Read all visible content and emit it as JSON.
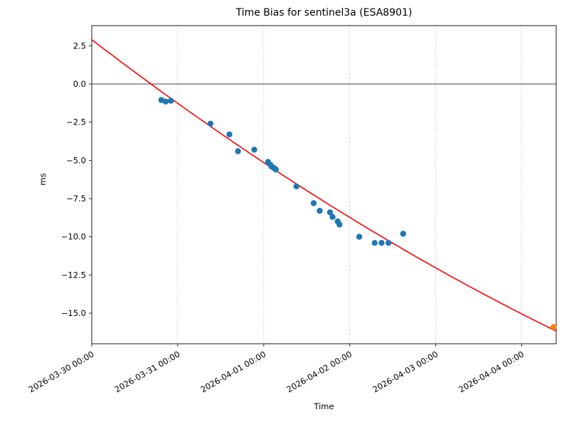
{
  "figure": {
    "title": "Time Bias for sentinel3a (ESA8901)",
    "xlabel": "Time",
    "ylabel": "ms"
  },
  "chart_data": {
    "type": "scatter",
    "title": "Time Bias for sentinel3a (ESA8901)",
    "xlabel": "Time",
    "ylabel": "ms",
    "x_unit": "days since 2026-03-30 00:00",
    "xlim_days": [
      0,
      5.4
    ],
    "ylim": [
      -17.0,
      3.82
    ],
    "grid": "vertical dotted gridlines at each day tick",
    "zero_line": true,
    "colors": {
      "grid": "#6a93c0",
      "axis": "#000000",
      "observations": "#1f77b4",
      "latest": "#ff7f0e",
      "fit": "#ff0000"
    },
    "x_ticks": [
      {
        "t": 0,
        "label": "2026-03-30 00:00"
      },
      {
        "t": 1,
        "label": "2026-03-31 00:00"
      },
      {
        "t": 2,
        "label": "2026-04-01 00:00"
      },
      {
        "t": 3,
        "label": "2026-04-02 00:00"
      },
      {
        "t": 4,
        "label": "2026-04-03 00:00"
      },
      {
        "t": 5,
        "label": "2026-04-04 00:00"
      }
    ],
    "y_ticks": [
      {
        "v": 2.5,
        "label": "2.5"
      },
      {
        "v": 0.0,
        "label": "0.0"
      },
      {
        "v": -2.5,
        "label": "−2.5"
      },
      {
        "v": -5.0,
        "label": "−5.0"
      },
      {
        "v": -7.5,
        "label": "−7.5"
      },
      {
        "v": -10.0,
        "label": "−10.0"
      },
      {
        "v": -12.5,
        "label": "−12.5"
      },
      {
        "v": -15.0,
        "label": "−15.0"
      }
    ],
    "series": [
      {
        "name": "time-bias-observations",
        "type": "scatter",
        "color": "#1f77b4",
        "points": [
          [
            0.81,
            -1.05
          ],
          [
            0.86,
            -1.15
          ],
          [
            0.92,
            -1.1
          ],
          [
            1.38,
            -2.6
          ],
          [
            1.6,
            -3.3
          ],
          [
            1.7,
            -4.4
          ],
          [
            1.89,
            -4.3
          ],
          [
            2.05,
            -5.1
          ],
          [
            2.08,
            -5.3
          ],
          [
            2.09,
            -5.4
          ],
          [
            2.12,
            -5.5
          ],
          [
            2.14,
            -5.6
          ],
          [
            2.38,
            -6.7
          ],
          [
            2.58,
            -7.8
          ],
          [
            2.65,
            -8.3
          ],
          [
            2.77,
            -8.4
          ],
          [
            2.8,
            -8.7
          ],
          [
            2.86,
            -9.0
          ],
          [
            2.88,
            -9.2
          ],
          [
            3.11,
            -10.0
          ],
          [
            3.29,
            -10.4
          ],
          [
            3.37,
            -10.4
          ],
          [
            3.45,
            -10.4
          ],
          [
            3.62,
            -9.8
          ]
        ]
      },
      {
        "name": "latest-observation",
        "type": "scatter",
        "color": "#ff7f0e",
        "points": [
          [
            5.37,
            -15.9
          ]
        ]
      },
      {
        "name": "polynomial-fit",
        "type": "line",
        "color": "#ff0000",
        "model": "quadratic",
        "coeffs": {
          "a": 2.9,
          "b": -4.31,
          "c": 0.144
        },
        "t_range": [
          0,
          5.4
        ]
      }
    ]
  }
}
